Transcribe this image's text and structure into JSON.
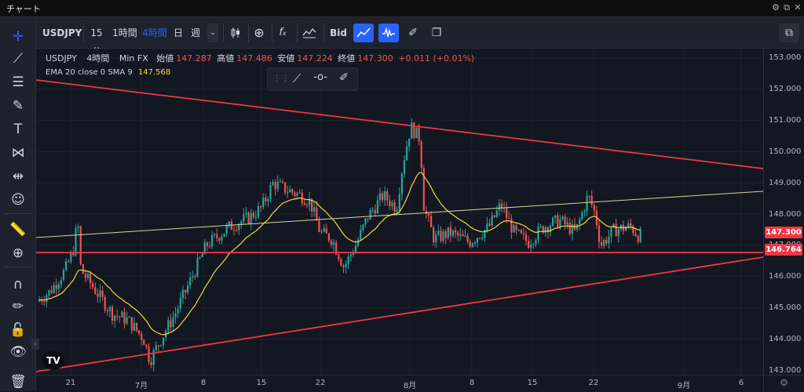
{
  "window": {
    "title": "チャート"
  },
  "toolbar": {
    "symbol": "USDJPY",
    "intervals": [
      "15分",
      "1時間",
      "4時間",
      "日",
      "週"
    ],
    "active_interval": "4時間",
    "bid_label": "Bid"
  },
  "legend": {
    "symbol": "USDJPY",
    "interval": "4時間",
    "source": "Min FX",
    "open_label": "始値",
    "open": "147.287",
    "high_label": "高値",
    "high": "147.486",
    "low_label": "安値",
    "low": "147.224",
    "close_label": "終値",
    "close": "147.300",
    "change": "+0.011 (+0.01%)",
    "ema_label": "EMA 20 close 0 SMA 9",
    "ema_value": "147.568"
  },
  "price_axis": {
    "ticks": [
      "153.000",
      "152.000",
      "151.000",
      "150.000",
      "149.000",
      "148.000",
      "147.000",
      "146.000",
      "145.000",
      "144.000",
      "143.000"
    ],
    "current_price": "147.300",
    "hline_price": "146.764"
  },
  "time_axis": {
    "labels": [
      "21",
      "7月",
      "8",
      "15",
      "22",
      "8月",
      "8",
      "15",
      "22",
      "9月",
      "6"
    ]
  },
  "colors": {
    "up": "#26a69a",
    "down": "#ef5350",
    "trendline": "#f23645",
    "ema": "#f5d73c",
    "accent": "#2962ff"
  }
}
